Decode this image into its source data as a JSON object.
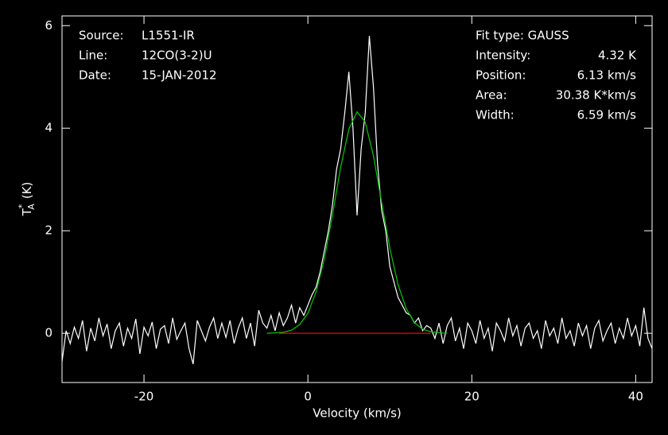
{
  "chart_data": {
    "type": "spectrum",
    "xlabel": "Velocity (km/s)",
    "ylabel": {
      "base": "T",
      "sup": "*",
      "sub": "A",
      "unit": "(K)"
    },
    "xlim": [
      -30,
      42
    ],
    "ylim": [
      -0.96,
      6.19
    ],
    "xticks": [
      -20,
      0,
      20,
      40
    ],
    "yticks": [
      0,
      2,
      4,
      6
    ],
    "header_left": [
      [
        "Source:",
        "L1551-IR"
      ],
      [
        "Line:",
        "12CO(3-2)U"
      ],
      [
        "Date:",
        "15-JAN-2012"
      ]
    ],
    "header_right": [
      [
        "Fit type: GAUSS",
        ""
      ],
      [
        "Intensity:",
        "4.32 K"
      ],
      [
        "Position:",
        "6.13 km/s"
      ],
      [
        "Area:",
        "30.38 K*km/s"
      ],
      [
        "Width:",
        "6.59 km/s"
      ]
    ],
    "baseline": {
      "color": "#ff0000",
      "x": [
        -3.5,
        15
      ],
      "values": [
        0,
        0
      ]
    },
    "series": [
      {
        "color": "#ffffff",
        "x": [
          -30,
          -29.5,
          -29,
          -28.5,
          -28,
          -27.5,
          -27,
          -26.5,
          -26,
          -25.5,
          -25,
          -24.5,
          -24,
          -23.5,
          -23,
          -22.5,
          -22,
          -21.5,
          -21,
          -20.5,
          -20,
          -19.5,
          -19,
          -18.5,
          -18,
          -17.5,
          -17,
          -16.5,
          -16,
          -15.5,
          -15,
          -14.5,
          -14,
          -13.5,
          -13,
          -12.5,
          -12,
          -11.5,
          -11,
          -10.5,
          -10,
          -9.5,
          -9,
          -8.5,
          -8,
          -7.5,
          -7,
          -6.5,
          -6,
          -5.5,
          -5,
          -4.5,
          -4,
          -3.5,
          -3,
          -2.5,
          -2,
          -1.5,
          -1,
          -0.5,
          0,
          0.5,
          1,
          1.5,
          2,
          2.5,
          3,
          3.5,
          4,
          4.5,
          5,
          5.5,
          6,
          6.5,
          7,
          7.5,
          8,
          8.5,
          9,
          9.5,
          10,
          10.5,
          11,
          11.5,
          12,
          12.5,
          13,
          13.5,
          14,
          14.5,
          15,
          15.5,
          16,
          16.5,
          17,
          17.5,
          18,
          18.5,
          19,
          19.5,
          20,
          20.5,
          21,
          21.5,
          22,
          22.5,
          23,
          23.5,
          24,
          24.5,
          25,
          25.5,
          26,
          26.5,
          27,
          27.5,
          28,
          28.5,
          29,
          29.5,
          30,
          30.5,
          31,
          31.5,
          32,
          32.5,
          33,
          33.5,
          34,
          34.5,
          35,
          35.5,
          36,
          36.5,
          37,
          37.5,
          38,
          38.5,
          39,
          39.5,
          40,
          40.5,
          41,
          41.5,
          42
        ],
        "values": [
          -0.55,
          0.05,
          -0.2,
          0.12,
          -0.1,
          0.25,
          -0.35,
          0.1,
          -0.15,
          0.3,
          -0.05,
          0.18,
          -0.3,
          0.05,
          0.2,
          -0.25,
          0.1,
          -0.1,
          0.28,
          -0.4,
          0.12,
          -0.05,
          0.22,
          -0.3,
          0.08,
          0.15,
          -0.2,
          0.3,
          -0.12,
          0.05,
          0.2,
          -0.3,
          -0.6,
          0.25,
          0.05,
          -0.15,
          0.12,
          0.3,
          -0.1,
          0.2,
          -0.08,
          0.25,
          -0.2,
          0.1,
          0.3,
          -0.1,
          0.2,
          -0.25,
          0.45,
          0.2,
          0.1,
          0.35,
          0.05,
          0.4,
          0.15,
          0.3,
          0.55,
          0.2,
          0.5,
          0.35,
          0.55,
          0.75,
          0.9,
          1.2,
          1.6,
          2.0,
          2.5,
          3.2,
          3.6,
          4.3,
          5.1,
          4.0,
          2.3,
          3.6,
          4.3,
          5.8,
          4.8,
          3.3,
          2.4,
          2.0,
          1.3,
          1.0,
          0.7,
          0.55,
          0.4,
          0.35,
          0.2,
          0.3,
          0.05,
          0.15,
          0.1,
          -0.1,
          0.2,
          -0.2,
          0.15,
          0.3,
          -0.15,
          0.1,
          -0.3,
          0.2,
          0.05,
          -0.2,
          0.25,
          -0.1,
          0.1,
          -0.35,
          0.2,
          0.05,
          -0.15,
          0.3,
          -0.05,
          0.15,
          -0.25,
          0.1,
          0.2,
          -0.1,
          0.05,
          -0.3,
          0.25,
          -0.05,
          0.1,
          -0.2,
          0.3,
          -0.1,
          0.05,
          -0.25,
          0.2,
          -0.05,
          0.15,
          -0.3,
          0.1,
          0.25,
          -0.15,
          0.05,
          0.2,
          -0.2,
          0.1,
          -0.1,
          0.3,
          -0.05,
          0.15,
          -0.25,
          0.5,
          -0.1,
          -0.3
        ]
      },
      {
        "color": "#00cc00",
        "x": [
          -5,
          -4,
          -3,
          -2,
          -1,
          0,
          1,
          2,
          3,
          4,
          5,
          6,
          7,
          8,
          9,
          10,
          11,
          12,
          13,
          14,
          15,
          16,
          17
        ],
        "values": [
          0,
          0.01,
          0.02,
          0.06,
          0.17,
          0.39,
          0.81,
          1.45,
          2.31,
          3.24,
          3.98,
          4.32,
          4.12,
          3.46,
          2.55,
          1.66,
          0.95,
          0.48,
          0.21,
          0.08,
          0.03,
          0.01,
          0
        ]
      }
    ]
  }
}
